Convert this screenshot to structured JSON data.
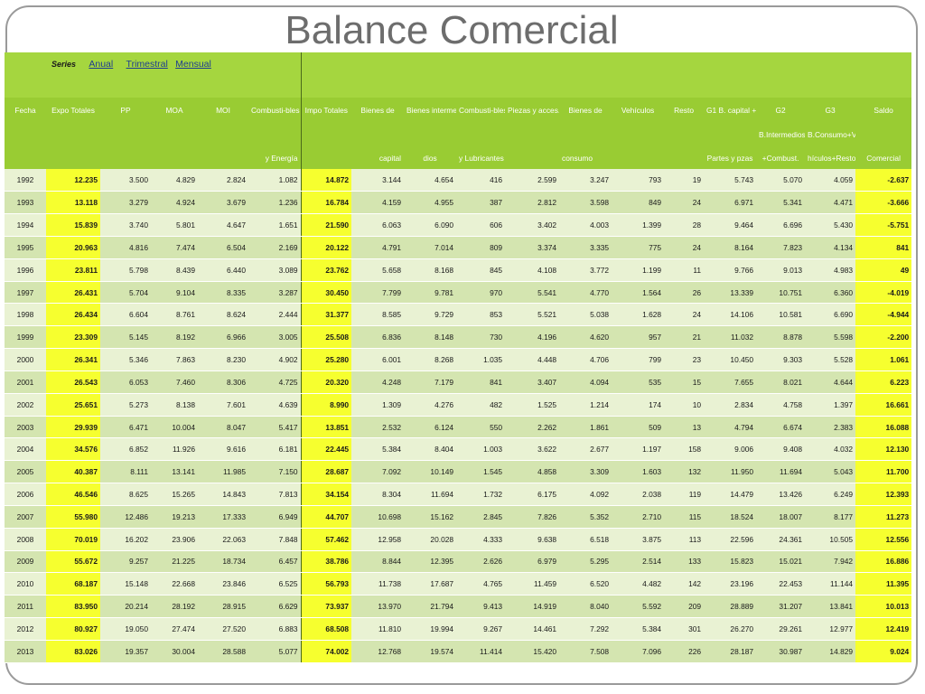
{
  "title": "Balance Comercial",
  "series": {
    "label": "Series",
    "links": [
      "Anual",
      "Trimestral",
      "Mensual"
    ]
  },
  "headers": {
    "row1": [
      "Fecha",
      "Expo Totales",
      "PP",
      "MOA",
      "MOI",
      "Combusti-bles",
      "Impo Totales",
      "Bienes de",
      "Bienes interme-",
      "Combusti-bles",
      "Piezas y acces.",
      "Bienes de",
      "Vehículos",
      "Resto",
      "G1 B. capital +",
      "G2",
      "G3",
      "Saldo"
    ],
    "row2": {
      "g2": "B.Intermedios",
      "g3": "B.Consumo+Ve"
    },
    "row3": {
      "combustibles": "y Energía",
      "bienes_capital": "capital",
      "bienes_intermedios": "dios",
      "combustibles_impo": "y Lubricantes",
      "bienes_consumo": "consumo",
      "g1": "Partes y pzas",
      "g2": "+Combust.",
      "g3": "hículos+Resto",
      "saldo": "Comercial"
    }
  },
  "colors": {
    "header": "#99cc33",
    "highlight": "#f6ff2f",
    "row_light": "#e9f2d3",
    "row_dark": "#d4e5b0"
  },
  "rows": [
    [
      "1992",
      "12.235",
      "3.500",
      "4.829",
      "2.824",
      "1.082",
      "14.872",
      "3.144",
      "4.654",
      "416",
      "2.599",
      "3.247",
      "793",
      "19",
      "5.743",
      "5.070",
      "4.059",
      "-2.637"
    ],
    [
      "1993",
      "13.118",
      "3.279",
      "4.924",
      "3.679",
      "1.236",
      "16.784",
      "4.159",
      "4.955",
      "387",
      "2.812",
      "3.598",
      "849",
      "24",
      "6.971",
      "5.341",
      "4.471",
      "-3.666"
    ],
    [
      "1994",
      "15.839",
      "3.740",
      "5.801",
      "4.647",
      "1.651",
      "21.590",
      "6.063",
      "6.090",
      "606",
      "3.402",
      "4.003",
      "1.399",
      "28",
      "9.464",
      "6.696",
      "5.430",
      "-5.751"
    ],
    [
      "1995",
      "20.963",
      "4.816",
      "7.474",
      "6.504",
      "2.169",
      "20.122",
      "4.791",
      "7.014",
      "809",
      "3.374",
      "3.335",
      "775",
      "24",
      "8.164",
      "7.823",
      "4.134",
      "841"
    ],
    [
      "1996",
      "23.811",
      "5.798",
      "8.439",
      "6.440",
      "3.089",
      "23.762",
      "5.658",
      "8.168",
      "845",
      "4.108",
      "3.772",
      "1.199",
      "11",
      "9.766",
      "9.013",
      "4.983",
      "49"
    ],
    [
      "1997",
      "26.431",
      "5.704",
      "9.104",
      "8.335",
      "3.287",
      "30.450",
      "7.799",
      "9.781",
      "970",
      "5.541",
      "4.770",
      "1.564",
      "26",
      "13.339",
      "10.751",
      "6.360",
      "-4.019"
    ],
    [
      "1998",
      "26.434",
      "6.604",
      "8.761",
      "8.624",
      "2.444",
      "31.377",
      "8.585",
      "9.729",
      "853",
      "5.521",
      "5.038",
      "1.628",
      "24",
      "14.106",
      "10.581",
      "6.690",
      "-4.944"
    ],
    [
      "1999",
      "23.309",
      "5.145",
      "8.192",
      "6.966",
      "3.005",
      "25.508",
      "6.836",
      "8.148",
      "730",
      "4.196",
      "4.620",
      "957",
      "21",
      "11.032",
      "8.878",
      "5.598",
      "-2.200"
    ],
    [
      "2000",
      "26.341",
      "5.346",
      "7.863",
      "8.230",
      "4.902",
      "25.280",
      "6.001",
      "8.268",
      "1.035",
      "4.448",
      "4.706",
      "799",
      "23",
      "10.450",
      "9.303",
      "5.528",
      "1.061"
    ],
    [
      "2001",
      "26.543",
      "6.053",
      "7.460",
      "8.306",
      "4.725",
      "20.320",
      "4.248",
      "7.179",
      "841",
      "3.407",
      "4.094",
      "535",
      "15",
      "7.655",
      "8.021",
      "4.644",
      "6.223"
    ],
    [
      "2002",
      "25.651",
      "5.273",
      "8.138",
      "7.601",
      "4.639",
      "8.990",
      "1.309",
      "4.276",
      "482",
      "1.525",
      "1.214",
      "174",
      "10",
      "2.834",
      "4.758",
      "1.397",
      "16.661"
    ],
    [
      "2003",
      "29.939",
      "6.471",
      "10.004",
      "8.047",
      "5.417",
      "13.851",
      "2.532",
      "6.124",
      "550",
      "2.262",
      "1.861",
      "509",
      "13",
      "4.794",
      "6.674",
      "2.383",
      "16.088"
    ],
    [
      "2004",
      "34.576",
      "6.852",
      "11.926",
      "9.616",
      "6.181",
      "22.445",
      "5.384",
      "8.404",
      "1.003",
      "3.622",
      "2.677",
      "1.197",
      "158",
      "9.006",
      "9.408",
      "4.032",
      "12.130"
    ],
    [
      "2005",
      "40.387",
      "8.111",
      "13.141",
      "11.985",
      "7.150",
      "28.687",
      "7.092",
      "10.149",
      "1.545",
      "4.858",
      "3.309",
      "1.603",
      "132",
      "11.950",
      "11.694",
      "5.043",
      "11.700"
    ],
    [
      "2006",
      "46.546",
      "8.625",
      "15.265",
      "14.843",
      "7.813",
      "34.154",
      "8.304",
      "11.694",
      "1.732",
      "6.175",
      "4.092",
      "2.038",
      "119",
      "14.479",
      "13.426",
      "6.249",
      "12.393"
    ],
    [
      "2007",
      "55.980",
      "12.486",
      "19.213",
      "17.333",
      "6.949",
      "44.707",
      "10.698",
      "15.162",
      "2.845",
      "7.826",
      "5.352",
      "2.710",
      "115",
      "18.524",
      "18.007",
      "8.177",
      "11.273"
    ],
    [
      "2008",
      "70.019",
      "16.202",
      "23.906",
      "22.063",
      "7.848",
      "57.462",
      "12.958",
      "20.028",
      "4.333",
      "9.638",
      "6.518",
      "3.875",
      "113",
      "22.596",
      "24.361",
      "10.505",
      "12.556"
    ],
    [
      "2009",
      "55.672",
      "9.257",
      "21.225",
      "18.734",
      "6.457",
      "38.786",
      "8.844",
      "12.395",
      "2.626",
      "6.979",
      "5.295",
      "2.514",
      "133",
      "15.823",
      "15.021",
      "7.942",
      "16.886"
    ],
    [
      "2010",
      "68.187",
      "15.148",
      "22.668",
      "23.846",
      "6.525",
      "56.793",
      "11.738",
      "17.687",
      "4.765",
      "11.459",
      "6.520",
      "4.482",
      "142",
      "23.196",
      "22.453",
      "11.144",
      "11.395"
    ],
    [
      "2011",
      "83.950",
      "20.214",
      "28.192",
      "28.915",
      "6.629",
      "73.937",
      "13.970",
      "21.794",
      "9.413",
      "14.919",
      "8.040",
      "5.592",
      "209",
      "28.889",
      "31.207",
      "13.841",
      "10.013"
    ],
    [
      "2012",
      "80.927",
      "19.050",
      "27.474",
      "27.520",
      "6.883",
      "68.508",
      "11.810",
      "19.994",
      "9.267",
      "14.461",
      "7.292",
      "5.384",
      "301",
      "26.270",
      "29.261",
      "12.977",
      "12.419"
    ],
    [
      "2013",
      "83.026",
      "19.357",
      "30.004",
      "28.588",
      "5.077",
      "74.002",
      "12.768",
      "19.574",
      "11.414",
      "15.420",
      "7.508",
      "7.096",
      "226",
      "28.187",
      "30.987",
      "14.829",
      "9.024"
    ]
  ]
}
